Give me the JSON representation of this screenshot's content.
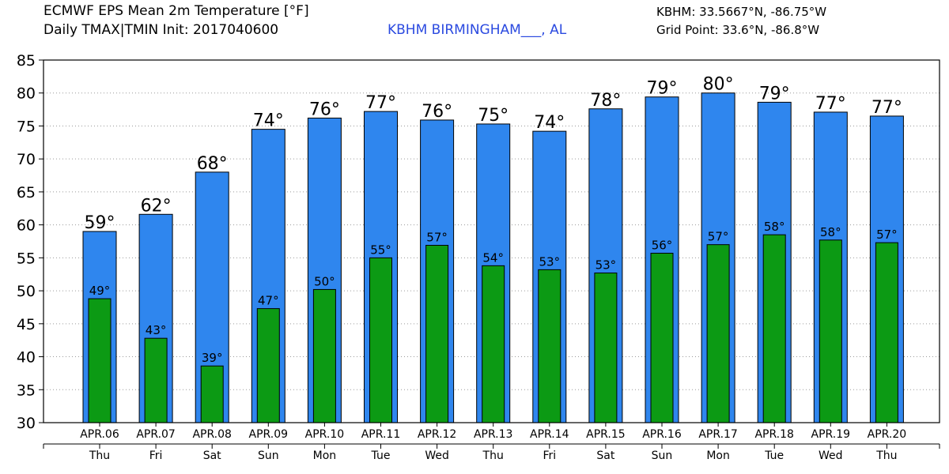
{
  "header": {
    "title_line1": "ECMWF EPS Mean 2m Temperature [°F]",
    "title_line2": "Daily TMAX|TMIN Init: 2017040600",
    "station_label": "KBHM BIRMINGHAM___, AL",
    "coords_line1": "KBHM: 33.5667°N, -86.75°W",
    "coords_line2": "Grid Point: 33.6°N, -86.8°W"
  },
  "colors": {
    "tmax_bar": "#2f86ee",
    "tmin_bar": "#0c9a14",
    "station_text": "#2b4ae0",
    "grid": "#9a9a9a"
  },
  "chart_data": {
    "type": "bar",
    "title": "ECMWF EPS Mean 2m Temperature [°F]",
    "xlabel": "",
    "ylabel": "",
    "ylim": [
      30,
      85
    ],
    "yticks": [
      30,
      35,
      40,
      45,
      50,
      55,
      60,
      65,
      70,
      75,
      80,
      85
    ],
    "grid": true,
    "categories": [
      "APR.06",
      "APR.07",
      "APR.08",
      "APR.09",
      "APR.10",
      "APR.11",
      "APR.12",
      "APR.13",
      "APR.14",
      "APR.15",
      "APR.16",
      "APR.17",
      "APR.18",
      "APR.19",
      "APR.20"
    ],
    "weekdays": [
      "Thu",
      "Fri",
      "Sat",
      "Sun",
      "Mon",
      "Tue",
      "Wed",
      "Thu",
      "Fri",
      "Sat",
      "Sun",
      "Mon",
      "Tue",
      "Wed",
      "Thu"
    ],
    "series": [
      {
        "name": "TMAX",
        "values": [
          59,
          61.6,
          68,
          74.5,
          76.2,
          77.2,
          75.9,
          75.3,
          74.2,
          77.6,
          79.4,
          80,
          78.6,
          77.1,
          76.5
        ],
        "labels": [
          "59°",
          "62°",
          "68°",
          "74°",
          "76°",
          "77°",
          "76°",
          "75°",
          "74°",
          "78°",
          "79°",
          "80°",
          "79°",
          "77°",
          "77°"
        ]
      },
      {
        "name": "TMIN",
        "values": [
          48.8,
          42.8,
          38.6,
          47.3,
          50.2,
          55,
          56.9,
          53.8,
          53.2,
          52.7,
          55.7,
          57,
          58.5,
          57.7,
          57.3
        ],
        "labels": [
          "49°",
          "43°",
          "39°",
          "47°",
          "50°",
          "55°",
          "57°",
          "54°",
          "53°",
          "53°",
          "56°",
          "57°",
          "58°",
          "58°",
          "57°"
        ]
      }
    ]
  }
}
